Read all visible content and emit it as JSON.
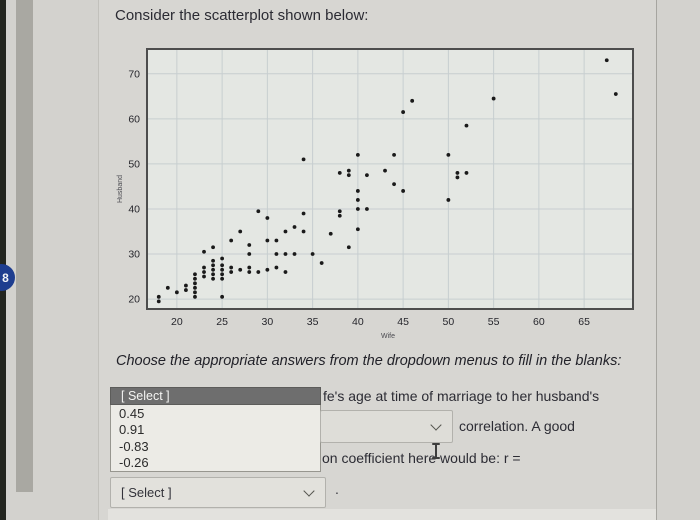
{
  "page": {
    "title": "Consider the scatterplot shown below:",
    "prompt": "Choose the appropriate answers from the dropdown menus to fill in the blanks:",
    "sentence_fragment_1": "fe's age at time of marriage to her husband's",
    "sentence_fragment_2": "correlation. A good",
    "sentence_fragment_3": "on coefficient here would be: r =",
    "trailing_period": ".",
    "badge_count": "8"
  },
  "dropdown_open": {
    "header_label": "[ Select ]",
    "options": [
      "0.45",
      "0.91",
      "-0.83",
      "-0.26"
    ]
  },
  "dropdown_bottom": {
    "label": "[ Select ]"
  },
  "colors": {
    "dropdown_header_bg": "#6e6e6e",
    "badge_bg": "#1e3d8f",
    "point_color": "#1a1a1a",
    "plot_bg": "#e4e7e3",
    "grid_color": "#c7ced0",
    "plot_border": "#4d4d4d"
  },
  "chart_data": {
    "type": "scatter",
    "title": "",
    "xlabel": "Wife",
    "ylabel": "Husband",
    "x_ticks": [
      20,
      25,
      30,
      35,
      40,
      45,
      50,
      55,
      60,
      65
    ],
    "y_ticks": [
      20,
      30,
      40,
      50,
      60,
      70
    ],
    "xlim": [
      16.7,
      70.4
    ],
    "ylim": [
      17.8,
      75.5
    ],
    "grid": true,
    "legend": false,
    "points": [
      [
        18,
        20.5
      ],
      [
        18,
        19.5
      ],
      [
        19,
        22.5
      ],
      [
        20,
        21.5
      ],
      [
        21,
        23
      ],
      [
        21,
        22
      ],
      [
        22,
        25.5
      ],
      [
        22,
        24.5
      ],
      [
        22,
        23.5
      ],
      [
        22,
        22.5
      ],
      [
        22,
        21.5
      ],
      [
        22,
        20.5
      ],
      [
        23,
        30.5
      ],
      [
        23,
        27
      ],
      [
        23,
        26
      ],
      [
        23,
        25
      ],
      [
        24,
        31.5
      ],
      [
        24,
        28.5
      ],
      [
        24,
        27.5
      ],
      [
        24,
        26.5
      ],
      [
        24,
        25.5
      ],
      [
        24,
        24.5
      ],
      [
        25,
        29
      ],
      [
        25,
        27.5
      ],
      [
        25,
        26.5
      ],
      [
        25,
        25.5
      ],
      [
        25,
        24.5
      ],
      [
        25,
        20.5
      ],
      [
        26,
        33
      ],
      [
        26,
        27
      ],
      [
        26,
        26
      ],
      [
        27,
        35
      ],
      [
        27,
        26.5
      ],
      [
        28,
        32
      ],
      [
        28,
        30
      ],
      [
        28,
        27
      ],
      [
        28,
        26
      ],
      [
        29,
        39.5
      ],
      [
        29,
        26
      ],
      [
        30,
        38
      ],
      [
        30,
        33
      ],
      [
        30,
        26.5
      ],
      [
        31,
        33
      ],
      [
        31,
        30
      ],
      [
        31,
        27
      ],
      [
        32,
        35
      ],
      [
        32,
        30
      ],
      [
        32,
        26
      ],
      [
        33,
        36
      ],
      [
        33,
        30
      ],
      [
        34,
        51
      ],
      [
        34,
        39
      ],
      [
        34,
        35
      ],
      [
        35,
        30
      ],
      [
        36,
        28
      ],
      [
        37,
        34.5
      ],
      [
        38,
        48
      ],
      [
        38,
        39.5
      ],
      [
        38,
        38.5
      ],
      [
        39,
        48.5
      ],
      [
        39,
        47.5
      ],
      [
        39,
        31.5
      ],
      [
        40,
        52
      ],
      [
        40,
        44
      ],
      [
        40,
        42
      ],
      [
        40,
        40
      ],
      [
        40,
        35.5
      ],
      [
        41,
        47.5
      ],
      [
        41,
        40
      ],
      [
        43,
        48.5
      ],
      [
        44,
        52
      ],
      [
        44,
        45.5
      ],
      [
        45,
        61.5
      ],
      [
        45,
        44
      ],
      [
        46,
        64
      ],
      [
        50,
        52
      ],
      [
        50,
        42
      ],
      [
        51,
        48
      ],
      [
        51,
        47
      ],
      [
        52,
        48
      ],
      [
        52,
        58.5
      ],
      [
        55,
        64.5
      ],
      [
        67.5,
        73
      ],
      [
        68.5,
        65.5
      ]
    ]
  }
}
